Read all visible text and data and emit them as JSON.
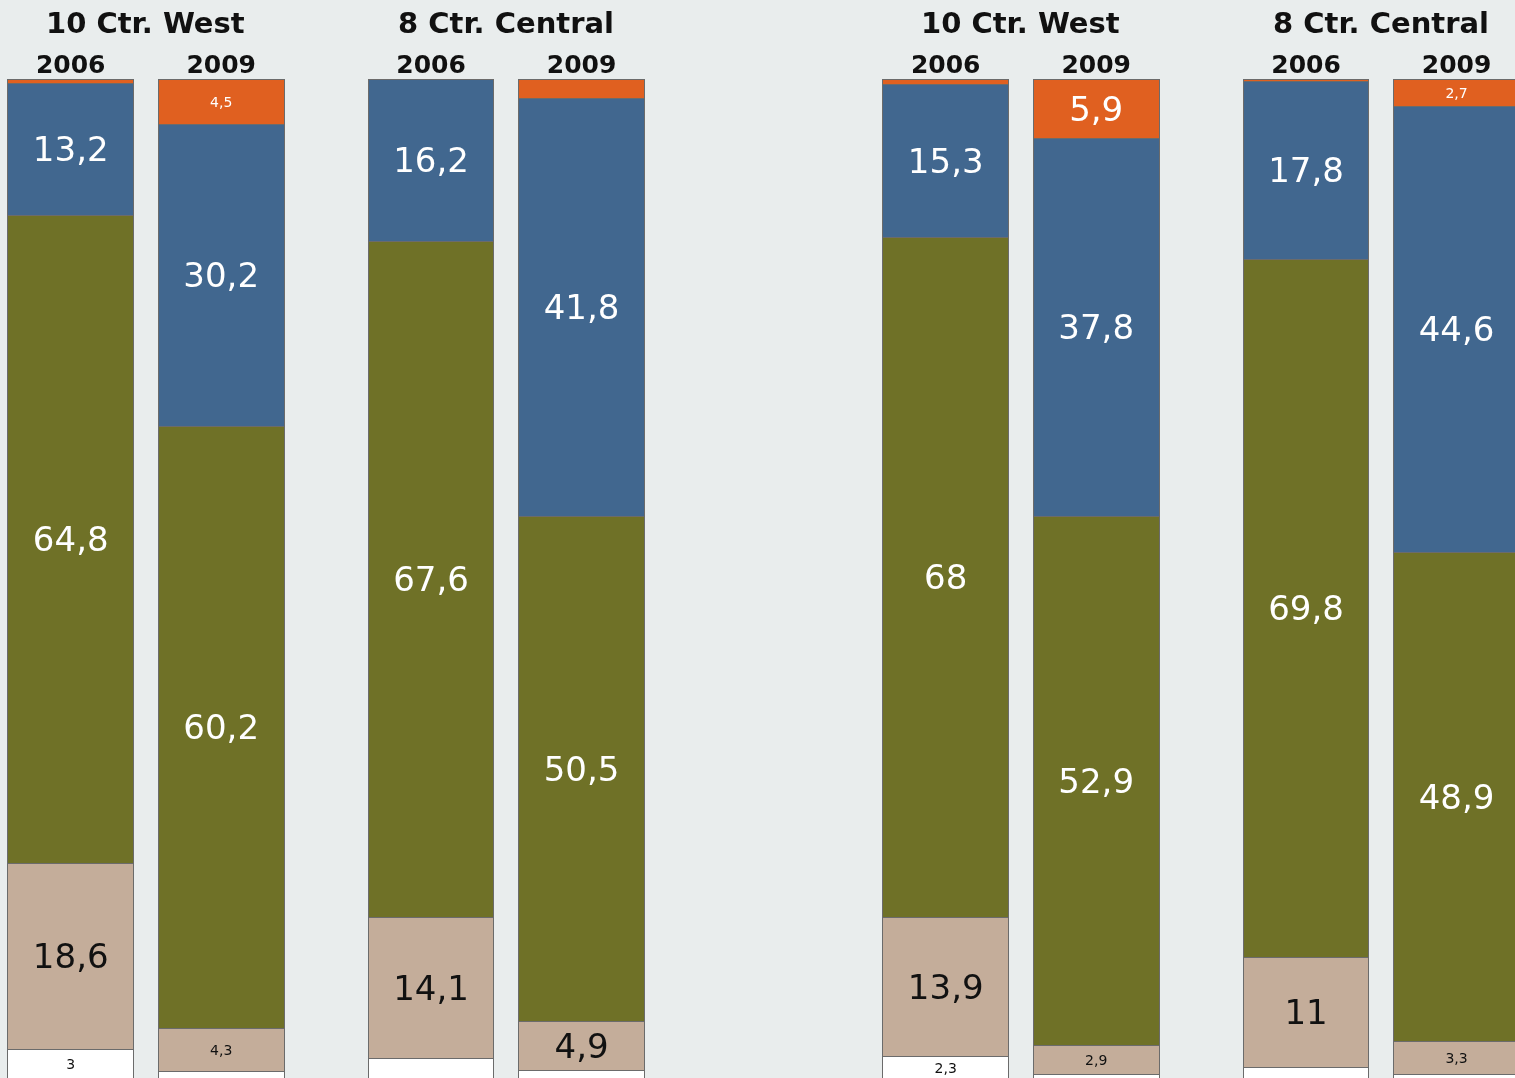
{
  "chart_data": [
    {
      "type": "bar",
      "stacked": true,
      "tick_labels": "x",
      "ylim": [
        0,
        100
      ],
      "categories": [
        "2006",
        "2009",
        "2006",
        "2009"
      ],
      "annotations": [
        "10 Ctr. West",
        "8 Ctr. Central"
      ],
      "series": [
        {
          "color": "#ffffff",
          "values": [
            3,
            0.8,
            2.1,
            0.9
          ],
          "value_labels": [
            "3",
            null,
            null,
            null
          ]
        },
        {
          "color": "#c4ad9a",
          "values": [
            18.6,
            4.3,
            14.1,
            4.9
          ],
          "value_labels": [
            "18,6",
            "4,3",
            "14,1",
            "4,9"
          ]
        },
        {
          "color": "#6f7127",
          "values": [
            64.8,
            60.2,
            67.6,
            50.5
          ],
          "value_labels": [
            "64,8",
            "60,2",
            "67,6",
            "50,5"
          ]
        },
        {
          "color": "#41678f",
          "values": [
            13.2,
            30.2,
            16.2,
            41.8
          ],
          "value_labels": [
            "13,2",
            "30,2",
            "16,2",
            "41,8"
          ]
        },
        {
          "color": "#e06020",
          "values": [
            0.4,
            4.5,
            0,
            1.9
          ],
          "value_labels": [
            null,
            "4,5",
            null,
            null
          ]
        }
      ]
    },
    {
      "type": "bar",
      "stacked": true,
      "tick_labels": "x",
      "ylim": [
        0,
        100
      ],
      "categories": [
        "2006",
        "2009",
        "2006",
        "2009"
      ],
      "annotations": [
        "10 Ctr. West",
        "8 Ctr. Central"
      ],
      "series": [
        {
          "color": "#ffffff",
          "values": [
            2.3,
            0.5,
            1.2,
            0.5
          ],
          "value_labels": [
            "2,3",
            null,
            null,
            null
          ]
        },
        {
          "color": "#c4ad9a",
          "values": [
            13.9,
            2.9,
            11,
            3.3
          ],
          "value_labels": [
            "13,9",
            "2,9",
            "11",
            "3,3"
          ]
        },
        {
          "color": "#6f7127",
          "values": [
            68,
            52.9,
            69.8,
            48.9
          ],
          "value_labels": [
            "68",
            "52,9",
            "69,8",
            "48,9"
          ]
        },
        {
          "color": "#41678f",
          "values": [
            15.3,
            37.8,
            17.8,
            44.6
          ],
          "value_labels": [
            "15,3",
            "37,8",
            "17,8",
            "44,6"
          ]
        },
        {
          "color": "#e06020",
          "values": [
            0.5,
            5.9,
            0.2,
            2.7
          ],
          "value_labels": [
            null,
            "5,9",
            null,
            "2,7"
          ]
        }
      ]
    }
  ]
}
